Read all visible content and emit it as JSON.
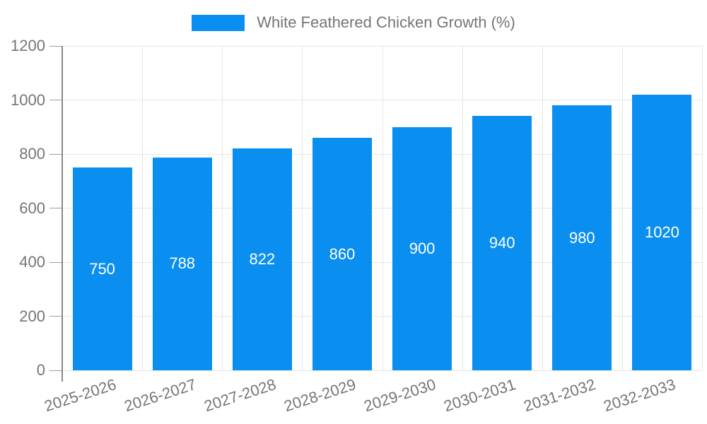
{
  "legend": {
    "label": "White Feathered Chicken Growth (%)"
  },
  "colors": {
    "bar": "#0a8ff0",
    "grid": "#e6e6e6",
    "axis_line": "#8a8a8a",
    "tick_text": "#757575",
    "value_text": "#ffffff"
  },
  "chart_data": {
    "type": "bar",
    "categories": [
      "2025-2026",
      "2026-2027",
      "2027-2028",
      "2028-2029",
      "2029-2030",
      "2030-2031",
      "2031-2032",
      "2032-2033"
    ],
    "values": [
      750,
      788,
      822,
      860,
      900,
      940,
      980,
      1020
    ],
    "title": "",
    "xlabel": "",
    "ylabel": "",
    "ylim": [
      0,
      1200
    ],
    "yticks": [
      0,
      200,
      400,
      600,
      800,
      1000,
      1200
    ],
    "grid": true,
    "legend_label": "White Feathered Chicken Growth (%)",
    "legend_position": "top",
    "bar_label_position": "inside-center",
    "xtick_rotation_deg": -18
  }
}
